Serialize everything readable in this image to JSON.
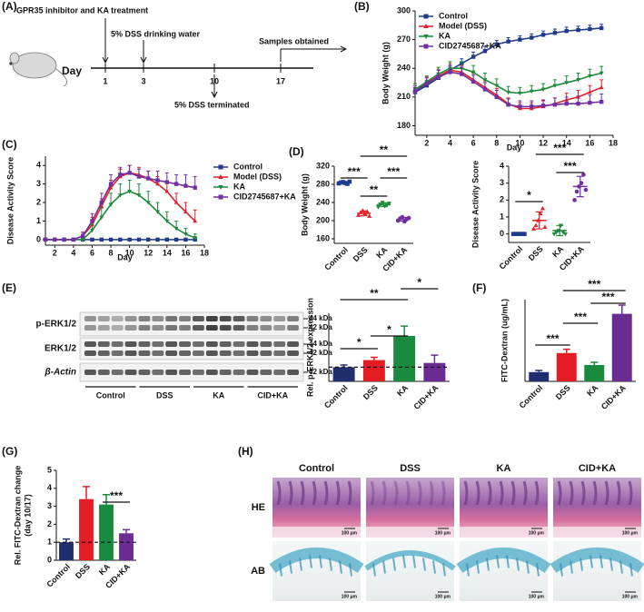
{
  "panel_labels": [
    "(A)",
    "(B)",
    "(C)",
    "(D)",
    "(E)",
    "(F)",
    "(G)",
    "(H)"
  ],
  "timeline": {
    "treatment": "GPR35 inhibitor and KA treatment",
    "dss": "5% DSS drinking water",
    "samples": "Samples obtained",
    "day": "Day",
    "days": [
      "1",
      "3",
      "10",
      "17"
    ],
    "terminated": "5% DSS terminated"
  },
  "blot": {
    "rows": [
      "p-ERK1/2",
      "ERK1/2",
      "β-Actin"
    ],
    "sizes": [
      "44 kDa",
      "42 kDa",
      "44 kDa",
      "42 kDa",
      "42 kDa"
    ],
    "groups": [
      "Control",
      "DSS",
      "KA",
      "CID+KA"
    ]
  },
  "histology": {
    "columns": [
      "Control",
      "DSS",
      "KA",
      "CID+KA"
    ],
    "rows": [
      "HE",
      "AB"
    ],
    "scale": "100 μm"
  },
  "chart_data": [
    {
      "type": "line",
      "ylabel": "Body Weight (g)",
      "xlabel": "Day",
      "legend": "upper left",
      "x": [
        1,
        2,
        3,
        4,
        5,
        6,
        7,
        8,
        9,
        10,
        11,
        12,
        13,
        14,
        15,
        16,
        17
      ],
      "xlim": [
        1,
        18
      ],
      "xticks": [
        2,
        4,
        6,
        8,
        10,
        12,
        14,
        16,
        18
      ],
      "ylim": [
        170,
        300
      ],
      "yticks": [
        180,
        210,
        240,
        270,
        300
      ],
      "series": [
        {
          "name": "Control",
          "color": "#1f3a8a",
          "marker": "square",
          "values": [
            215,
            222,
            230,
            238,
            245,
            252,
            258,
            265,
            268,
            270,
            272,
            275,
            277,
            279,
            280,
            281,
            282
          ],
          "errors": [
            5,
            5,
            5,
            5,
            5,
            5,
            5,
            4,
            4,
            4,
            4,
            4,
            4,
            4,
            4,
            4,
            4
          ]
        },
        {
          "name": "Model (DSS)",
          "color": "#e3202a",
          "marker": "triangle",
          "values": [
            218,
            225,
            232,
            238,
            236,
            228,
            220,
            212,
            203,
            198,
            198,
            200,
            203,
            207,
            210,
            215,
            220
          ],
          "errors": [
            6,
            6,
            7,
            7,
            7,
            7,
            7,
            7,
            6,
            6,
            6,
            6,
            6,
            7,
            7,
            7,
            8
          ]
        },
        {
          "name": "KA",
          "color": "#1e8a3c",
          "marker": "triangle-down",
          "values": [
            218,
            226,
            234,
            240,
            240,
            236,
            228,
            222,
            215,
            214,
            216,
            218,
            222,
            225,
            228,
            232,
            235
          ],
          "errors": [
            6,
            6,
            7,
            7,
            7,
            7,
            7,
            7,
            6,
            6,
            6,
            6,
            6,
            7,
            7,
            7,
            7
          ]
        },
        {
          "name": "CID2745687+KA",
          "color": "#7030a0",
          "marker": "square",
          "values": [
            216,
            224,
            231,
            236,
            234,
            226,
            218,
            210,
            202,
            200,
            200,
            201,
            202,
            203,
            203,
            204,
            205
          ],
          "errors": [
            6,
            6,
            7,
            7,
            7,
            7,
            7,
            7,
            6,
            6,
            6,
            6,
            7,
            7,
            8,
            8,
            8
          ]
        }
      ]
    },
    {
      "type": "line",
      "ylabel": "Disease Activity Score",
      "xlabel": "Day",
      "legend": "right",
      "x": [
        1,
        2,
        3,
        4,
        5,
        6,
        7,
        8,
        9,
        10,
        11,
        12,
        13,
        14,
        15,
        16,
        17
      ],
      "xlim": [
        1,
        18
      ],
      "xticks": [
        2,
        4,
        6,
        8,
        10,
        12,
        14,
        16,
        18
      ],
      "ylim": [
        -0.3,
        4.5
      ],
      "yticks": [
        0,
        1,
        2,
        3,
        4
      ],
      "series": [
        {
          "name": "Control",
          "color": "#1f3a8a",
          "marker": "square",
          "values": [
            0,
            0,
            0,
            0,
            0,
            0,
            0,
            0,
            0,
            0,
            0,
            0,
            0,
            0,
            0,
            0,
            0
          ],
          "errors": [
            0,
            0,
            0,
            0,
            0,
            0,
            0,
            0,
            0,
            0,
            0,
            0,
            0,
            0,
            0,
            0,
            0
          ]
        },
        {
          "name": "Model (DSS)",
          "color": "#e3202a",
          "marker": "triangle",
          "values": [
            0,
            0,
            0,
            0,
            0.2,
            0.8,
            1.8,
            2.8,
            3.4,
            3.6,
            3.5,
            3.3,
            3.0,
            2.6,
            2.0,
            1.5,
            1.0
          ],
          "errors": [
            0,
            0,
            0,
            0,
            0.2,
            0.4,
            0.4,
            0.4,
            0.4,
            0.4,
            0.4,
            0.4,
            0.4,
            0.5,
            0.5,
            0.5,
            0.6
          ]
        },
        {
          "name": "KA",
          "color": "#1e8a3c",
          "marker": "triangle-down",
          "values": [
            0,
            0,
            0,
            0,
            0,
            0.5,
            1.2,
            1.9,
            2.4,
            2.6,
            2.4,
            2.0,
            1.5,
            1.0,
            0.6,
            0.3,
            0.1
          ],
          "errors": [
            0,
            0,
            0,
            0,
            0,
            0.3,
            0.5,
            0.6,
            0.6,
            0.6,
            0.6,
            0.6,
            0.5,
            0.5,
            0.4,
            0.3,
            0.2
          ]
        },
        {
          "name": "CID2745687+KA",
          "color": "#7030a0",
          "marker": "square",
          "values": [
            0,
            0,
            0,
            0,
            0.2,
            1.0,
            2.0,
            3.0,
            3.5,
            3.6,
            3.4,
            3.3,
            3.2,
            3.1,
            3.0,
            2.9,
            2.8
          ],
          "errors": [
            0,
            0,
            0,
            0,
            0.2,
            0.4,
            0.5,
            0.5,
            0.4,
            0.4,
            0.4,
            0.4,
            0.5,
            0.5,
            0.5,
            0.6,
            0.6
          ]
        }
      ]
    },
    {
      "type": "dot",
      "ylabel": "Body Weight (g)",
      "categories": [
        "Control",
        "DSS",
        "KA",
        "CID+KA"
      ],
      "colors": [
        "#1f3a8a",
        "#e3202a",
        "#1e8a3c",
        "#7030a0"
      ],
      "markers": [
        "square",
        "triangle",
        "triangle-down",
        "circle"
      ],
      "values": [
        [
          282,
          284,
          285,
          283,
          281,
          286
        ],
        [
          212,
          218,
          222,
          215,
          220,
          210
        ],
        [
          230,
          236,
          240,
          232,
          234,
          238
        ],
        [
          200,
          205,
          208,
          198,
          203,
          206
        ]
      ],
      "means": [
        283,
        216,
        235,
        203
      ],
      "errors": [
        2,
        5,
        4,
        4
      ],
      "ylim": [
        150,
        320
      ],
      "yticks": [
        160,
        200,
        240,
        280,
        320
      ],
      "annotations": [
        "***",
        "**",
        "**",
        "***"
      ]
    },
    {
      "type": "dot",
      "ylabel": "Disease Activity Score",
      "categories": [
        "Control",
        "DSS",
        "KA",
        "CID+KA"
      ],
      "colors": [
        "#1f3a8a",
        "#e3202a",
        "#1e8a3c",
        "#7030a0"
      ],
      "markers": [
        "square",
        "triangle",
        "triangle-down",
        "circle"
      ],
      "values": [
        [
          0,
          0,
          0,
          0,
          0,
          0
        ],
        [
          0.3,
          0.5,
          0.8,
          1.2,
          1.5,
          0.4
        ],
        [
          0,
          0.1,
          0.2,
          0.5,
          0.1,
          0
        ],
        [
          2.0,
          2.5,
          2.8,
          3.0,
          3.5,
          2.6
        ]
      ],
      "means": [
        0,
        0.8,
        0.2,
        2.8
      ],
      "errors": [
        0,
        0.5,
        0.3,
        0.6
      ],
      "ylim": [
        -0.5,
        4
      ],
      "yticks": [
        0,
        1,
        2,
        3,
        4
      ],
      "annotations": [
        "*",
        "***",
        "***"
      ]
    },
    {
      "type": "bar",
      "ylabel": "Rel. p-ERK1/2 expression",
      "categories": [
        "Control",
        "DSS",
        "KA",
        "CID+KA"
      ],
      "colors": [
        "#1f2f6e",
        "#e31d23",
        "#1a8a3e",
        "#6b2c91"
      ],
      "values": [
        1.0,
        1.5,
        3.2,
        1.3
      ],
      "errors": [
        0.15,
        0.2,
        0.7,
        0.55
      ],
      "ylim": [
        0,
        4.8
      ],
      "reference_line": 1,
      "annotations": [
        "**",
        "*",
        "*",
        "*"
      ]
    },
    {
      "type": "bar",
      "ylabel": "FITC-Dextran (ug/mL)",
      "categories": [
        "Control",
        "DSS",
        "KA",
        "CID+KA"
      ],
      "colors": [
        "#1f2f6e",
        "#e31d23",
        "#1a8a3e",
        "#6b2c91"
      ],
      "values": [
        0.85,
        2.6,
        1.5,
        6.2
      ],
      "errors": [
        0.15,
        0.35,
        0.25,
        0.8
      ],
      "ylim": [
        0,
        7.5
      ],
      "annotations": [
        "***",
        "***",
        "***",
        "***"
      ]
    },
    {
      "type": "bar",
      "ylabel": [
        "Rel. FITC-Dextran change",
        "(day 10/17)"
      ],
      "categories": [
        "Control",
        "DSS",
        "KA",
        "CID+KA"
      ],
      "colors": [
        "#1f2f6e",
        "#e31d23",
        "#1a8a3e",
        "#6b2c91"
      ],
      "values": [
        1.0,
        3.4,
        3.1,
        1.5
      ],
      "errors": [
        0.18,
        0.7,
        0.55,
        0.2
      ],
      "ylim": [
        0,
        5
      ],
      "yticks": [
        0,
        1,
        2,
        3,
        4,
        5
      ],
      "reference_line": 1,
      "annotations": [
        "***"
      ]
    }
  ]
}
